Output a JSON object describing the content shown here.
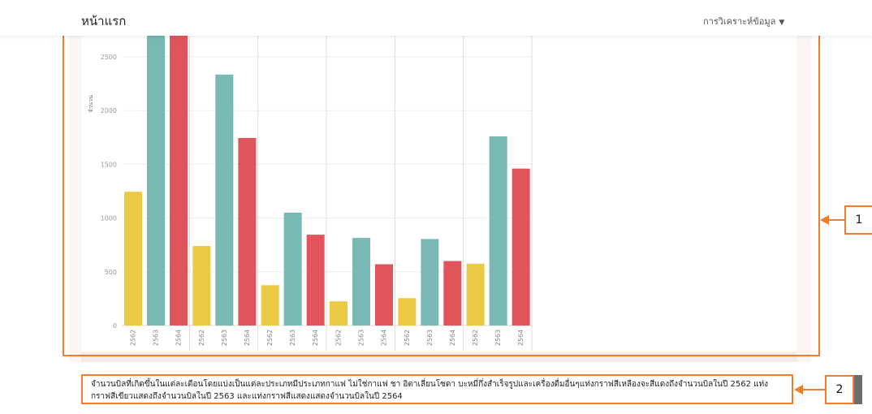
{
  "navbar": {
    "brand": "หน้าแรก",
    "menu_label": "การวิเคราะห์ข้อมูล"
  },
  "callouts": [
    {
      "number": "1"
    },
    {
      "number": "2"
    }
  ],
  "caption": {
    "text": "จำนวนบิลที่เกิดขึ้นในแต่ละเดือนโดยแบ่งเป็นแต่ละประเภทมีประเภทกาแฟ ไม่ใช่กาแฟ ชา อิตาเลี่ยนโซดา บะหมี่กึ่งสำเร็จรูปและเครื่องดื่มอื่นๆแท่งกราฟสีเหลืองจะสีแดงถึงจำนวนบิลในปี 2562 แท่งกราฟสีเขียวแสดงถึงจำนวนบิลในปี 2563 และแท่งกราฟสีแสดงแสดงจำนวนบิลในปี 2564"
  },
  "colors": {
    "y2562": "#eac945",
    "y2563": "#78b9b4",
    "y2564": "#e0555b",
    "callout": "#ed7d31"
  },
  "chart_data": {
    "type": "bar",
    "ylabel": "จำนวน",
    "ylim": [
      0,
      2700
    ],
    "yticks": [
      0,
      500,
      1000,
      1500,
      2000,
      2500
    ],
    "groups": [
      {
        "bars": [
          {
            "year": "2562",
            "value": 1245
          },
          {
            "year": "2563",
            "value": 2700
          },
          {
            "year": "2564",
            "value": 2700
          }
        ]
      },
      {
        "bars": [
          {
            "year": "2562",
            "value": 740
          },
          {
            "year": "2563",
            "value": 2335
          },
          {
            "year": "2564",
            "value": 1745
          }
        ]
      },
      {
        "bars": [
          {
            "year": "2562",
            "value": 375
          },
          {
            "year": "2563",
            "value": 1050
          },
          {
            "year": "2564",
            "value": 845
          }
        ]
      },
      {
        "bars": [
          {
            "year": "2562",
            "value": 225
          },
          {
            "year": "2563",
            "value": 815
          },
          {
            "year": "2564",
            "value": 570
          }
        ]
      },
      {
        "bars": [
          {
            "year": "2562",
            "value": 255
          },
          {
            "year": "2563",
            "value": 805
          },
          {
            "year": "2564",
            "value": 600
          }
        ]
      },
      {
        "bars": [
          {
            "year": "2562",
            "value": 575
          },
          {
            "year": "2563",
            "value": 1760
          },
          {
            "year": "2564",
            "value": 1460
          }
        ]
      }
    ]
  }
}
